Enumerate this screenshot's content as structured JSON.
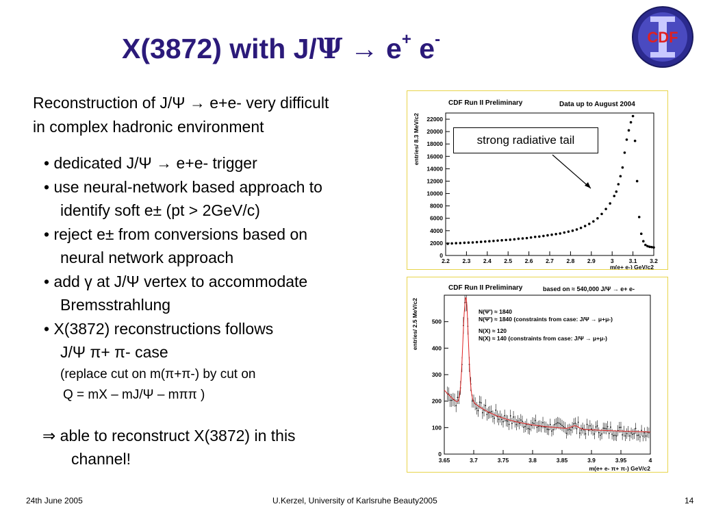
{
  "slide": {
    "title_main": "X(3872) with J/",
    "title_psi": "Ψ",
    "title_arrow": " → e",
    "title_plus": "+",
    "title_e2": " e",
    "title_minus": "-",
    "intro_line1": "Reconstruction of J/Ψ → e+e-  very difficult",
    "intro_line2": "in complex hadronic environment",
    "bullets": [
      "• dedicated J/Ψ → e+e- trigger",
      "• use neural-network based approach to",
      "identify soft e± (pt > 2GeV/c)",
      "• reject e± from conversions based on",
      "neural network approach",
      "• add γ at J/Ψ vertex to  accommodate",
      "Bremsstrahlung",
      "• X(3872) reconstructions follows",
      "J/Ψ π+ π- case",
      "(replace cut on m(π+π-) by cut on",
      "Q = mX – mJ/Ψ – mππ )"
    ],
    "conclusion_line1": "⇒ able to reconstruct X(3872) in this",
    "conclusion_line2": "channel!",
    "annotation": "strong radiative tail",
    "logo_text": "CDF",
    "footer_left": "24th June 2005",
    "footer_center": "U.Kerzel, University of Karlsruhe Beauty2005",
    "footer_right": "14"
  },
  "chart_data": [
    {
      "type": "scatter",
      "title": "CDF Run II Preliminary",
      "subtitle": "Data up to August 2004",
      "xlabel": "m(e+ e-) GeV/c2",
      "ylabel": "entries/ 8.3 MeV/c2",
      "xlim": [
        2.2,
        3.2
      ],
      "ylim": [
        0,
        23000
      ],
      "xticks": [
        "2.2",
        "2.3",
        "2.4",
        "2.5",
        "2.6",
        "2.7",
        "2.8",
        "2.9",
        "3",
        "3.1",
        "3.2"
      ],
      "yticks": [
        "0",
        "2000",
        "4000",
        "6000",
        "8000",
        "10000",
        "12000",
        "14000",
        "16000",
        "18000",
        "20000",
        "22000"
      ],
      "x": [
        2.21,
        2.23,
        2.25,
        2.27,
        2.29,
        2.31,
        2.33,
        2.35,
        2.37,
        2.39,
        2.41,
        2.43,
        2.45,
        2.47,
        2.49,
        2.51,
        2.53,
        2.55,
        2.57,
        2.59,
        2.61,
        2.63,
        2.65,
        2.67,
        2.69,
        2.71,
        2.73,
        2.75,
        2.77,
        2.79,
        2.81,
        2.83,
        2.85,
        2.87,
        2.89,
        2.91,
        2.93,
        2.95,
        2.97,
        2.99,
        3.01,
        3.02,
        3.03,
        3.04,
        3.05,
        3.06,
        3.07,
        3.08,
        3.09,
        3.1,
        3.11,
        3.12,
        3.13,
        3.14,
        3.15,
        3.16,
        3.17,
        3.18,
        3.19,
        3.2
      ],
      "y": [
        1900,
        1950,
        1980,
        2000,
        2050,
        2080,
        2100,
        2150,
        2200,
        2250,
        2300,
        2350,
        2400,
        2450,
        2500,
        2550,
        2600,
        2700,
        2750,
        2800,
        2900,
        3000,
        3050,
        3150,
        3250,
        3350,
        3450,
        3550,
        3700,
        3850,
        4000,
        4200,
        4450,
        4750,
        5100,
        5500,
        6000,
        6700,
        7500,
        8400,
        9600,
        10300,
        11500,
        12800,
        14200,
        16600,
        18700,
        20200,
        21500,
        22500,
        18500,
        12000,
        6200,
        3500,
        2300,
        1700,
        1500,
        1400,
        1350,
        1300
      ]
    },
    {
      "type": "scatter",
      "title": "CDF Run II Preliminary",
      "subtitle": "based on ≈ 540,000 J/Ψ → e+ e-",
      "xlabel": "m(e+ e- π+ π-) GeV/c2",
      "ylabel": "entries/ 2.5 MeV/c2",
      "xlim": [
        3.65,
        4.0
      ],
      "ylim": [
        0,
        600
      ],
      "xticks": [
        "3.65",
        "3.7",
        "3.75",
        "3.8",
        "3.85",
        "3.9",
        "3.95",
        "4"
      ],
      "yticks": [
        "0",
        "100",
        "200",
        "300",
        "400",
        "500"
      ],
      "legend": [
        "N(Ψ') ≈ 1840",
        "N(Ψ') ≈ 1840 (constraints from case: J/Ψ → μ+μ-)",
        "N(X) ≈ 120",
        "N(X) ≈ 140  (constraints from case: J/Ψ → μ+μ-)"
      ],
      "fit_color": "#e02020"
    }
  ]
}
